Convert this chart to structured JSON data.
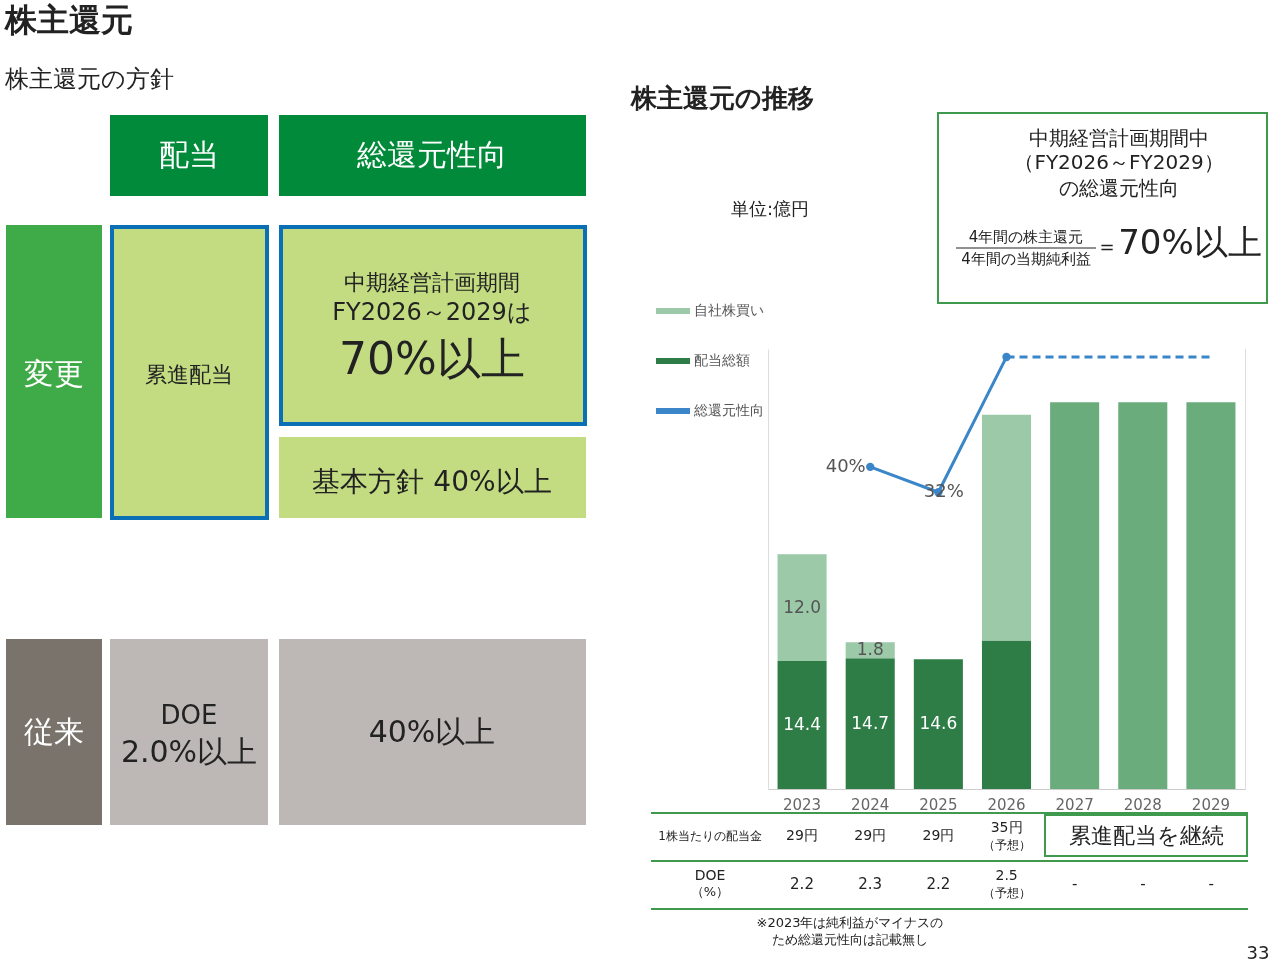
{
  "chart_data": [
    {
      "type": "other",
      "title": "株主還元",
      "subtitle": "株主還元の方針",
      "annotations": [
        "配当",
        "総還元性向",
        "変更",
        "累進配当",
        "中期経営計画期間",
        "FY2026～2029は",
        "70%以上",
        "基本方針 40%以上",
        "従来",
        "DOE",
        "2.0%以上",
        "40%以上"
      ]
    },
    {
      "type": "bar",
      "title": "株主還元の推移",
      "stacked": true,
      "categories": [
        "2023",
        "2024",
        "2025",
        "2026",
        "2027",
        "2028",
        "2029"
      ],
      "ylim": [
        0,
        49.5
      ],
      "y2lim": [
        -61.4,
        77.1
      ],
      "tick_labels": "x",
      "grid": false,
      "legend": "left",
      "series": [
        {
          "name": "配当総額",
          "color": "#2e7d46",
          "values": [
            14.4,
            14.7,
            14.6,
            16.7,
            null,
            null,
            null
          ],
          "value_labels": [
            "14.4",
            "14.7",
            "14.6",
            null,
            null,
            null,
            null
          ]
        },
        {
          "name": "自社株買い",
          "color": "#9cc9a8",
          "values": [
            12.0,
            1.8,
            null,
            25.4,
            null,
            null,
            null
          ],
          "value_labels": [
            "12.0",
            "1.8",
            null,
            null,
            null,
            null,
            null
          ]
        },
        {
          "color": "#6aac7c",
          "values": [
            null,
            null,
            null,
            null,
            43.5,
            43.5,
            43.5
          ]
        },
        {
          "name": "総還元性向",
          "type": "line",
          "axis": "y2",
          "color": "#3a86c8",
          "marker": "circle",
          "line_style": "solid",
          "values": [
            null,
            40,
            32,
            74.6,
            null,
            null,
            null
          ],
          "value_labels": [
            null,
            "40%",
            "32%",
            null,
            null,
            null,
            null
          ]
        },
        {
          "type": "line",
          "axis": "y2",
          "color": "#3a86c8",
          "marker": "none",
          "line_style": "dashed",
          "values": [
            null,
            null,
            null,
            74.6,
            74.6,
            74.6,
            74.6
          ]
        }
      ],
      "annotations": [
        "単位:億円",
        "中期経営計画期間中",
        "（FY2026～FY2029）",
        "の総還元性向",
        "4年間の株主還元",
        "4年間の当期純利益",
        "=",
        "70%以上",
        "1株当たりの配当金",
        "29円",
        "29円",
        "29円",
        "35円",
        "（予想）",
        "累進配当を継続",
        "DOE",
        "（%）",
        "2.2",
        "2.3",
        "2.2",
        "2.5",
        "（予想）",
        "-",
        "-",
        "-",
        "※2023年は純利益がマイナスの",
        "ため総還元性向は記載無し",
        "33"
      ]
    }
  ]
}
